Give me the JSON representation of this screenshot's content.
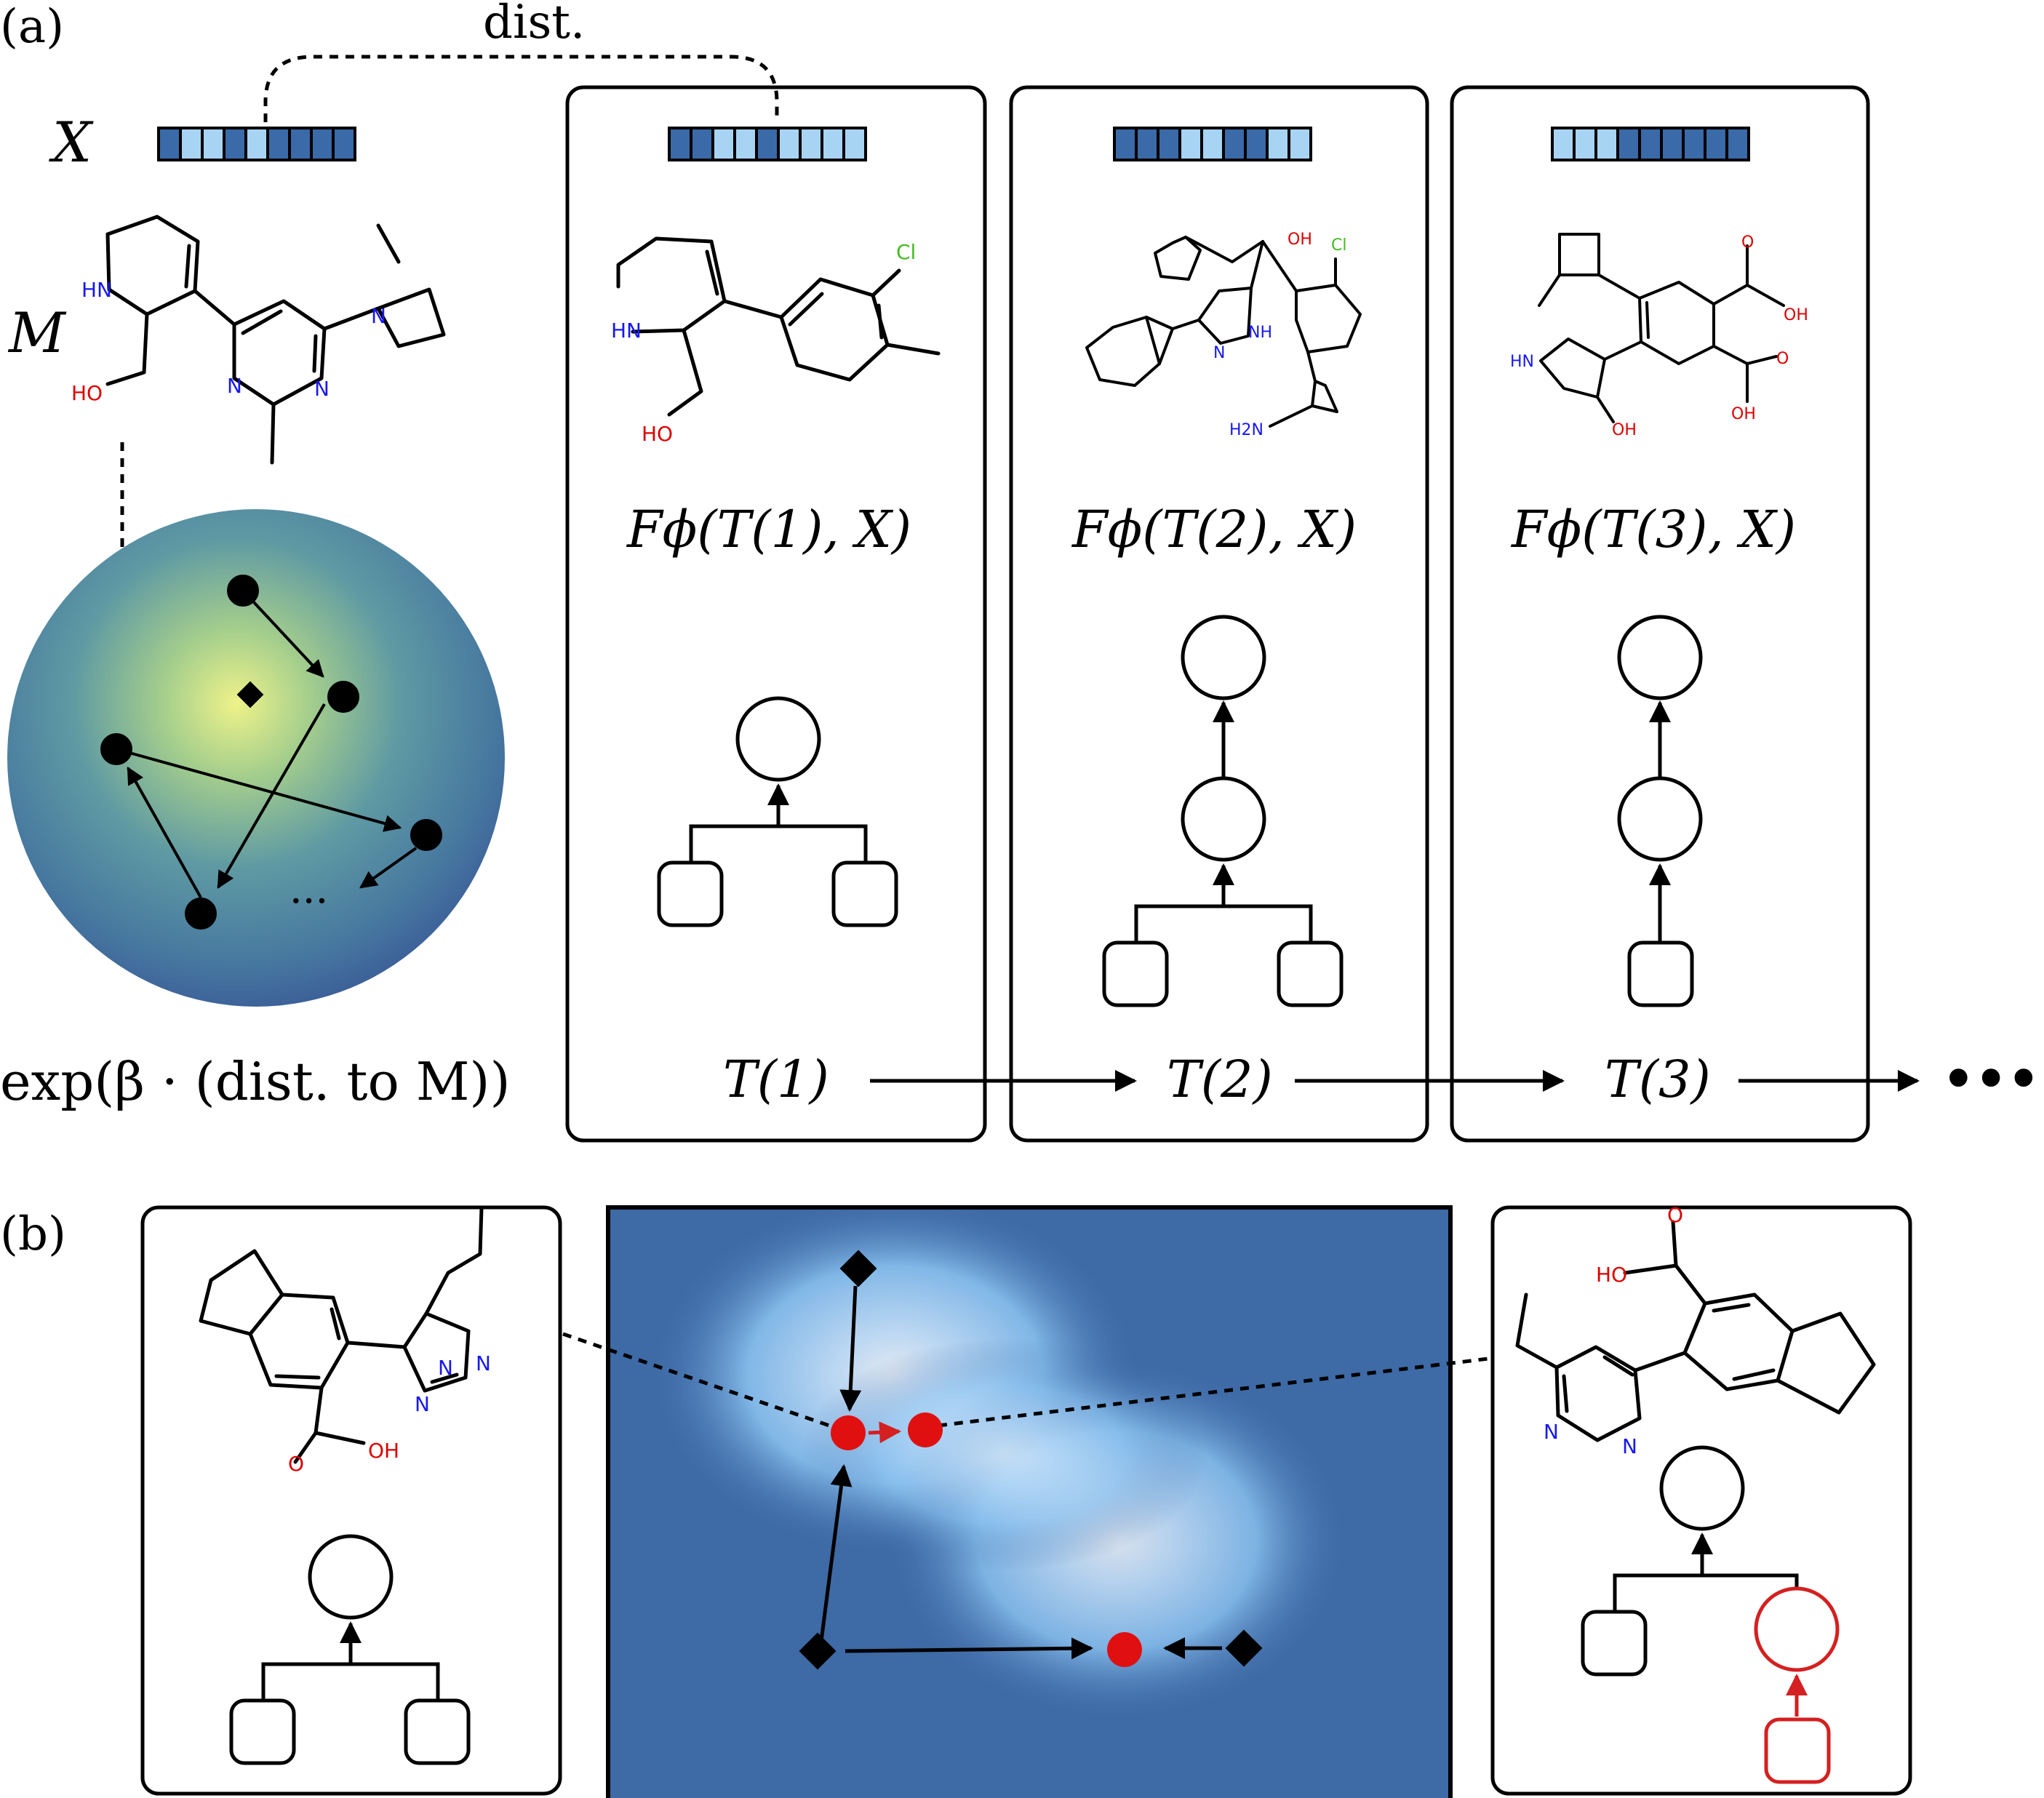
{
  "panel_a": {
    "label": "(a)",
    "dist_label": "dist.",
    "x_label": "X",
    "m_label": "M",
    "energy_label": "exp(β · (dist. to M))",
    "ellipsis": "···",
    "cards": [
      {
        "func": "Fϕ(T(1), X)",
        "tree": "T(1)"
      },
      {
        "func": "Fϕ(T(2), X)",
        "tree": "T(2)"
      },
      {
        "func": "Fϕ(T(3), X)",
        "tree": "T(3)"
      }
    ],
    "chain_ellipsis": "•••",
    "molecule_labels": {
      "m": [
        "HN",
        "HO",
        "N",
        "N",
        "N"
      ],
      "card1": [
        "Cl",
        "HN",
        "HO"
      ],
      "card2": [
        "OH",
        "Cl",
        "N",
        "NH",
        "H2N"
      ],
      "card3": [
        "HN",
        "OH",
        "O",
        "OH",
        "O",
        "OH"
      ]
    }
  },
  "panel_b": {
    "label": "(b)",
    "left_labels": [
      "N",
      "N",
      "N",
      "O",
      "OH"
    ],
    "right_labels": [
      "O",
      "HO",
      "N",
      "N"
    ]
  },
  "colors": {
    "fp_dark": "#3a6aa8",
    "fp_light": "#a8d4f4",
    "highlight_red": "#d42020",
    "sphere_center": "#eef28a",
    "sphere_edge": "#3a5a98",
    "landscape_bg": "#3e6aa6",
    "atom_n": "#1818ee",
    "atom_o": "#dd0000",
    "atom_cl": "#44bb22"
  }
}
